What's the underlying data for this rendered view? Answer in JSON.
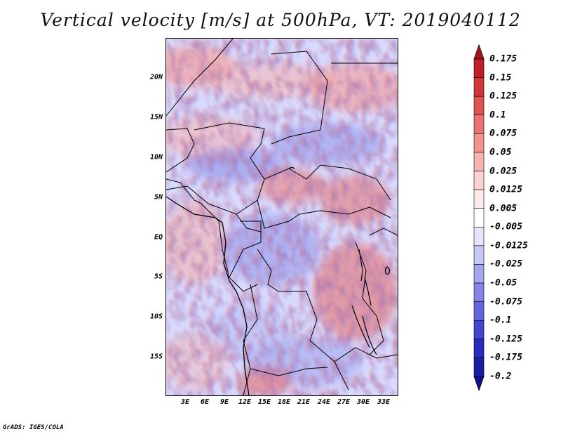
{
  "title": "Vertical velocity [m/s] at 500hPa, VT: 2019040112",
  "footer": "GrADS: IGES/COLA",
  "lat_ticks": [
    "20N",
    "15N",
    "10N",
    "5N",
    "EQ",
    "5S",
    "10S",
    "15S"
  ],
  "lon_ticks": [
    "3E",
    "6E",
    "9E",
    "12E",
    "15E",
    "18E",
    "21E",
    "24E",
    "27E",
    "30E",
    "33E"
  ],
  "colorbar": {
    "labels": [
      "0.175",
      "0.15",
      "0.125",
      "0.1",
      "0.075",
      "0.05",
      "0.025",
      "0.0125",
      "0.005",
      "-0.005",
      "-0.0125",
      "-0.025",
      "-0.05",
      "-0.075",
      "-0.1",
      "-0.125",
      "-0.175",
      "-0.2"
    ],
    "colors": [
      "#a5141e",
      "#bf2028",
      "#d0373a",
      "#de5453",
      "#e97371",
      "#f29391",
      "#f8b4b2",
      "#fcd3d1",
      "#fdeaea",
      "#ffffff",
      "#e6e6fb",
      "#c7c7f5",
      "#a6a6ee",
      "#8585e6",
      "#6464dc",
      "#4545cf",
      "#2b2bbd",
      "#1c1ca4",
      "#12128a"
    ]
  },
  "colors": {
    "positive": "#e05050",
    "negative": "#5050d8",
    "neutral": "#ffffff"
  }
}
